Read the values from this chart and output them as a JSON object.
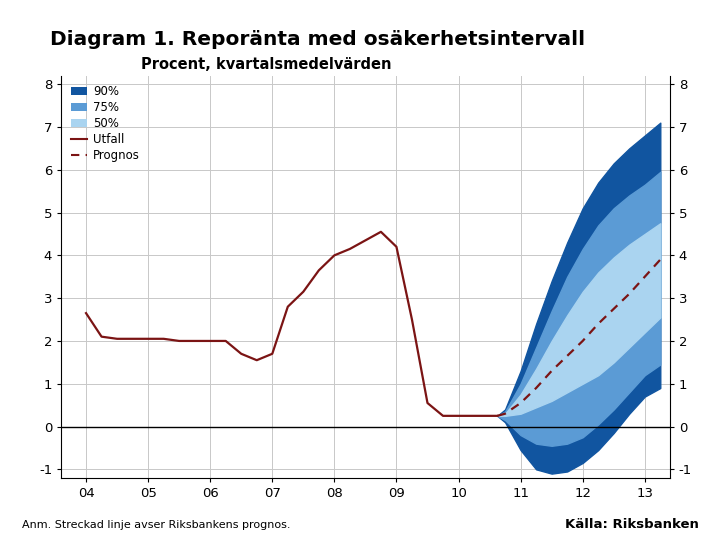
{
  "title": "Diagram 1. Reporänta med osäkerhetsintervall",
  "subtitle": "Procent, kvartalsmedelvärden",
  "footnote": "Anm. Streckad linje avser Riksbankens prognos.",
  "source": "Källa: Riksbanken",
  "ylim": [
    -1.2,
    8.2
  ],
  "yticks": [
    -1,
    0,
    1,
    2,
    3,
    4,
    5,
    6,
    7,
    8
  ],
  "xticks": [
    2004,
    2005,
    2006,
    2007,
    2008,
    2009,
    2010,
    2011,
    2012,
    2013
  ],
  "xlabels": [
    "04",
    "05",
    "06",
    "07",
    "08",
    "09",
    "10",
    "11",
    "12",
    "13"
  ],
  "xlim": [
    2003.6,
    2013.4
  ],
  "color_90pct": "#1155a0",
  "color_75pct": "#5b9bd5",
  "color_50pct": "#aad4f0",
  "color_actual": "#7b1414",
  "color_prognos": "#7b1414",
  "actual_x": [
    2004.0,
    2004.25,
    2004.5,
    2004.75,
    2005.0,
    2005.25,
    2005.5,
    2005.75,
    2006.0,
    2006.25,
    2006.5,
    2006.75,
    2007.0,
    2007.25,
    2007.5,
    2007.75,
    2008.0,
    2008.25,
    2008.5,
    2008.75,
    2009.0,
    2009.25,
    2009.5,
    2009.75,
    2010.0,
    2010.25,
    2010.5,
    2010.625
  ],
  "actual_y": [
    2.65,
    2.1,
    2.05,
    2.05,
    2.05,
    2.05,
    2.0,
    2.0,
    2.0,
    2.0,
    1.7,
    1.55,
    1.7,
    2.8,
    3.15,
    3.65,
    4.0,
    4.15,
    4.35,
    4.55,
    4.2,
    2.5,
    0.55,
    0.25,
    0.25,
    0.25,
    0.25,
    0.25
  ],
  "prognos_x": [
    2010.625,
    2010.75,
    2011.0,
    2011.25,
    2011.5,
    2011.75,
    2012.0,
    2012.25,
    2012.5,
    2012.75,
    2013.0,
    2013.25
  ],
  "prognos_y": [
    0.25,
    0.3,
    0.55,
    0.9,
    1.3,
    1.65,
    2.0,
    2.4,
    2.75,
    3.1,
    3.5,
    3.9
  ],
  "fan_x": [
    2010.625,
    2010.75,
    2011.0,
    2011.25,
    2011.5,
    2011.75,
    2012.0,
    2012.25,
    2012.5,
    2012.75,
    2013.0,
    2013.25
  ],
  "fan_90_upper": [
    0.25,
    0.4,
    1.3,
    2.4,
    3.4,
    4.3,
    5.1,
    5.7,
    6.15,
    6.5,
    6.8,
    7.1
  ],
  "fan_90_lower": [
    0.25,
    0.1,
    -0.55,
    -1.0,
    -1.1,
    -1.05,
    -0.85,
    -0.55,
    -0.15,
    0.3,
    0.7,
    0.9
  ],
  "fan_75_upper": [
    0.25,
    0.35,
    1.0,
    1.85,
    2.7,
    3.5,
    4.15,
    4.7,
    5.1,
    5.4,
    5.65,
    5.95
  ],
  "fan_75_lower": [
    0.25,
    0.15,
    -0.2,
    -0.4,
    -0.45,
    -0.4,
    -0.25,
    0.05,
    0.4,
    0.8,
    1.2,
    1.45
  ],
  "fan_50_upper": [
    0.25,
    0.3,
    0.75,
    1.35,
    2.0,
    2.6,
    3.15,
    3.6,
    3.95,
    4.25,
    4.5,
    4.75
  ],
  "fan_50_lower": [
    0.25,
    0.25,
    0.3,
    0.45,
    0.6,
    0.8,
    1.0,
    1.2,
    1.5,
    1.85,
    2.2,
    2.55
  ],
  "header_bar_color": "#1f4e79",
  "footer_bar_color": "#1f3d6e",
  "grid_color": "#c8c8c8"
}
